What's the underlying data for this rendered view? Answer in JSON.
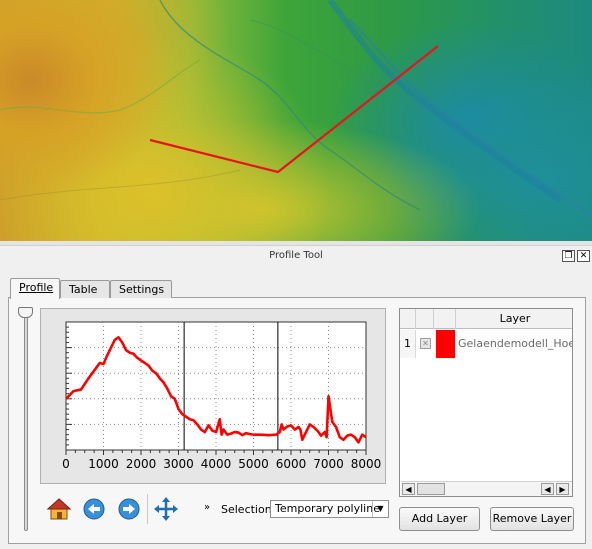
{
  "profile_tool": {
    "title": "Profile Tool",
    "restore_icon": "restore-icon",
    "close_icon": "close-icon"
  },
  "tabs": [
    {
      "label": "Profile",
      "active": true
    },
    {
      "label": "Table",
      "active": false
    },
    {
      "label": "Settings",
      "active": false
    }
  ],
  "chart_data": {
    "type": "line",
    "series": [
      {
        "color": "#ff0000",
        "x": [
          0,
          200,
          400,
          600,
          700,
          800,
          900,
          1000,
          1100,
          1200,
          1300,
          1400,
          1500,
          1600,
          1700,
          1800,
          1900,
          2000,
          2100,
          2200,
          2300,
          2400,
          2500,
          2600,
          2700,
          2800,
          2900,
          3000,
          3100,
          3200,
          3300,
          3400,
          3500,
          3600,
          3700,
          3800,
          3900,
          4000,
          4100,
          4150,
          4200,
          4300,
          4400,
          4500,
          4600,
          4700,
          4800,
          4900,
          5000,
          5200,
          5400,
          5600,
          5700,
          5750,
          5800,
          5900,
          6000,
          6100,
          6200,
          6250,
          6300,
          6400,
          6500,
          6600,
          6700,
          6800,
          6900,
          6950,
          7000,
          7100,
          7200,
          7300,
          7400,
          7500,
          7600,
          7700,
          7800,
          7900,
          8000
        ],
        "y": [
          200,
          215,
          218,
          240,
          250,
          260,
          270,
          268,
          285,
          300,
          315,
          320,
          310,
          295,
          290,
          288,
          280,
          275,
          270,
          265,
          255,
          250,
          240,
          232,
          220,
          205,
          200,
          180,
          170,
          165,
          160,
          158,
          150,
          140,
          135,
          148,
          138,
          135,
          160,
          130,
          140,
          130,
          132,
          135,
          134,
          129,
          133,
          131,
          130,
          130,
          129,
          130,
          135,
          150,
          140,
          146,
          148,
          140,
          145,
          140,
          120,
          135,
          150,
          145,
          138,
          128,
          135,
          125,
          205,
          155,
          145,
          125,
          120,
          128,
          130,
          125,
          115,
          130,
          125
        ]
      }
    ],
    "xlim": [
      0,
      8000
    ],
    "ylim": [
      100,
      350
    ],
    "xticks": [
      "0",
      "1000",
      "2000",
      "3000",
      "4000",
      "5000",
      "6000",
      "7000",
      "8000"
    ],
    "vlines": [
      3150,
      5650
    ],
    "grid": true
  },
  "layer_table": {
    "header": "Layer",
    "rows": [
      {
        "index": "1",
        "color": "#ff0000",
        "name": "Gelaendemodell_Hoehe"
      }
    ]
  },
  "toolbar": {
    "home_icon": "home-icon",
    "back_icon": "back-arrow-icon",
    "forward_icon": "forward-arrow-icon",
    "pan_icon": "pan-icon",
    "more_icon": "double-chevron-icon",
    "selection_label": "Selection",
    "selection_value": "Temporary polyline"
  },
  "buttons": {
    "add_layer": "Add Layer",
    "remove_layer": "Remove Layer"
  }
}
